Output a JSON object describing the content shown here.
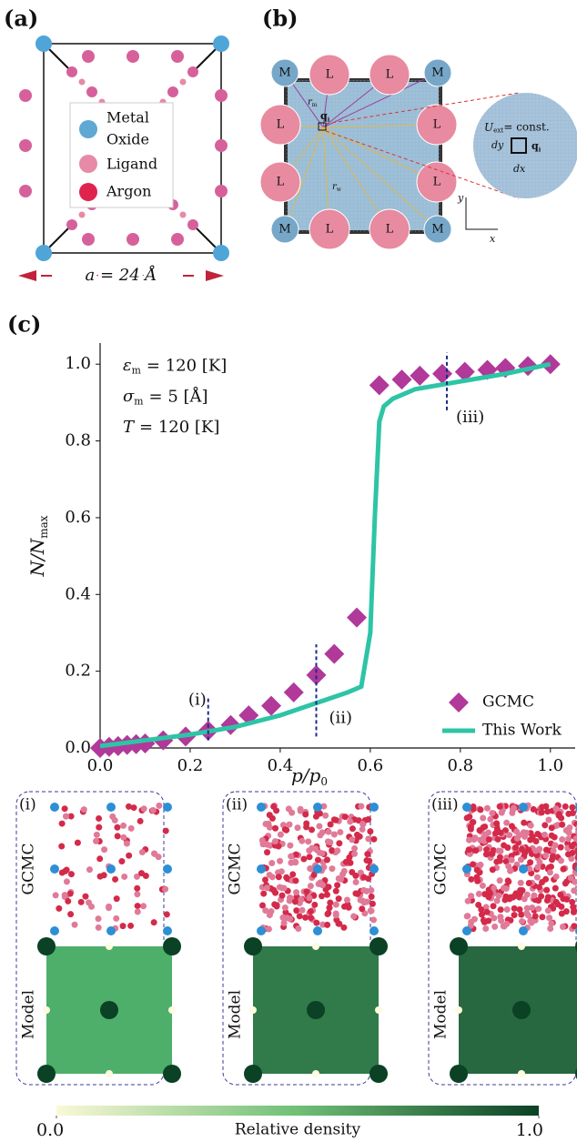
{
  "panel_a": {
    "label": "(a)",
    "legend": [
      {
        "lines": [
          "Metal",
          "Oxide"
        ],
        "color": "#5fa8d3"
      },
      {
        "lines": [
          "Ligand"
        ],
        "color": "#e68aa8"
      },
      {
        "lines": [
          "Argon"
        ],
        "color": "#e0234e"
      }
    ],
    "size": "a = 24 Å"
  },
  "panel_b": {
    "label": "(b)",
    "nodes": [
      "M",
      "L",
      "L",
      "M",
      "L",
      "L",
      "L",
      "L",
      "M",
      "L",
      "L",
      "M"
    ],
    "r_m": "r",
    "r_m_sub": "m",
    "r_w": "r",
    "r_w_sub": "w",
    "q": "q",
    "q_sub": "i",
    "u": "U",
    "u_sub": "ext",
    "u_text": "= const.",
    "dy": "dy",
    "dx": "dx",
    "axis_x": "x",
    "axis_y": "y"
  },
  "chart_data": {
    "type": "line",
    "label": "(c)",
    "params": [
      {
        "symbol": "ε",
        "sub": "m",
        "text": "= 120 [K]"
      },
      {
        "symbol": "σ",
        "sub": "m",
        "text": "= 5 [Å]"
      },
      {
        "symbol": "T",
        "sub": "",
        "text": "= 120 [K]"
      }
    ],
    "xlabel": "p/p",
    "xlabel_sub": "0",
    "ylabel": "N/N",
    "ylabel_sub": "max",
    "xlim": [
      0,
      1.055
    ],
    "ylim": [
      0,
      1.055
    ],
    "xticks": [
      {
        "value": 0,
        "label": "0.0"
      },
      0.2,
      0.4,
      0.6,
      0.8,
      {
        "value": 1,
        "label": "1.0"
      }
    ],
    "yticks": [
      {
        "value": 0,
        "label": "0.0"
      },
      0.2,
      0.4,
      0.6,
      0.8,
      {
        "value": 1,
        "label": "1.0"
      }
    ],
    "series": [
      {
        "name": "GCMC",
        "color": "#b0399a",
        "style": "diamond",
        "x": [
          0,
          0.02,
          0.04,
          0.06,
          0.08,
          0.1,
          0.14,
          0.19,
          0.24,
          0.29,
          0.33,
          0.38,
          0.43,
          0.48,
          0.52,
          0.57,
          0.62,
          0.67,
          0.71,
          0.76,
          0.81,
          0.86,
          0.9,
          0.95,
          1.0
        ],
        "values": [
          0,
          0.003,
          0.005,
          0.008,
          0.01,
          0.012,
          0.02,
          0.03,
          0.045,
          0.06,
          0.085,
          0.11,
          0.145,
          0.19,
          0.245,
          0.34,
          0.945,
          0.96,
          0.97,
          0.975,
          0.98,
          0.985,
          0.99,
          0.995,
          1.0
        ]
      },
      {
        "name": "This Work",
        "color": "#2ec4a6",
        "style": "line",
        "x": [
          0,
          0.1,
          0.2,
          0.3,
          0.4,
          0.5,
          0.55,
          0.58,
          0.6,
          0.61,
          0.62,
          0.63,
          0.65,
          0.7,
          0.8,
          0.9,
          1.0
        ],
        "values": [
          0.005,
          0.02,
          0.035,
          0.055,
          0.085,
          0.125,
          0.145,
          0.16,
          0.3,
          0.6,
          0.85,
          0.89,
          0.91,
          0.935,
          0.955,
          0.975,
          1.0
        ]
      }
    ],
    "markers": [
      {
        "x": 0.24,
        "span": [
          0.02,
          0.13
        ],
        "label": "(i)"
      },
      {
        "x": 0.48,
        "span": [
          0.03,
          0.27
        ],
        "label": "(ii)"
      },
      {
        "x": 0.77,
        "span": [
          0.88,
          1.03
        ],
        "label": "(iii)"
      }
    ]
  },
  "snapshots": {
    "panels": [
      {
        "label": "(i)",
        "density": 0.35
      },
      {
        "label": "(ii)",
        "density": 0.8
      },
      {
        "label": "(iii)",
        "density": 0.95
      }
    ],
    "row_top": "GCMC",
    "row_bottom": "Model"
  },
  "colorbar": {
    "label": "Relative density",
    "lim": [
      0,
      1
    ],
    "ticks": [
      {
        "value": 0,
        "label": "0.0"
      },
      {
        "value": 1,
        "label": "1.0"
      }
    ]
  }
}
